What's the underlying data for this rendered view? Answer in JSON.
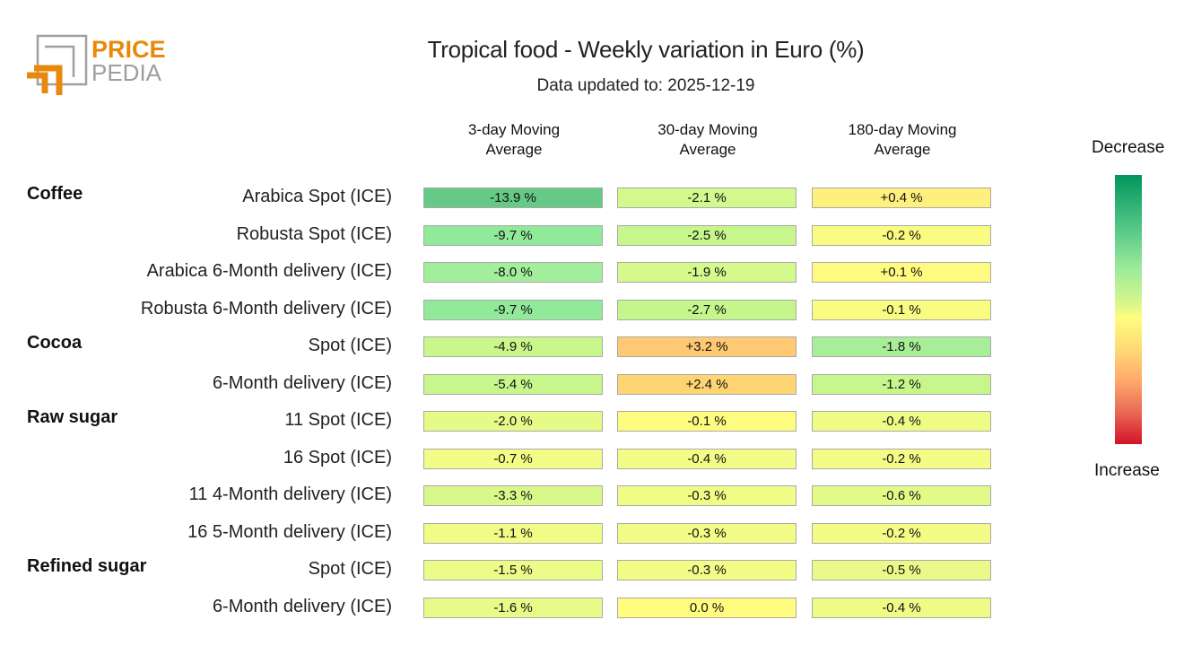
{
  "brand": {
    "name_top": "PRICE",
    "name_bottom": "PEDIA",
    "orange": "#e8890c",
    "gray": "#9e9e9e"
  },
  "chart_data": {
    "type": "heatmap",
    "title": "Tropical food - Weekly variation in Euro (%)",
    "subtitle": "Data updated to: 2025-12-19",
    "columns": [
      "3-day Moving\nAverage",
      "30-day Moving\nAverage",
      "180-day Moving\nAverage"
    ],
    "column_lines": [
      [
        "3-day Moving",
        "Average"
      ],
      [
        "30-day Moving",
        "Average"
      ],
      [
        "180-day Moving",
        "Average"
      ]
    ],
    "groups": [
      {
        "name": "Coffee",
        "first_row": 0
      },
      {
        "name": "Cocoa",
        "first_row": 4
      },
      {
        "name": "Raw sugar",
        "first_row": 6
      },
      {
        "name": "Refined sugar",
        "first_row": 10
      }
    ],
    "rows": [
      {
        "label": "Arabica Spot (ICE)",
        "values": [
          -13.9,
          -2.1,
          0.4
        ],
        "text": [
          "-13.9 %",
          "-2.1 %",
          "+0.4 %"
        ]
      },
      {
        "label": "Robusta Spot (ICE)",
        "values": [
          -9.7,
          -2.5,
          -0.2
        ],
        "text": [
          "-9.7 %",
          "-2.5 %",
          "-0.2 %"
        ]
      },
      {
        "label": "Arabica 6-Month delivery (ICE)",
        "values": [
          -8.0,
          -1.9,
          0.1
        ],
        "text": [
          "-8.0 %",
          "-1.9 %",
          "+0.1 %"
        ]
      },
      {
        "label": "Robusta 6-Month delivery (ICE)",
        "values": [
          -9.7,
          -2.7,
          -0.1
        ],
        "text": [
          "-9.7 %",
          "-2.7 %",
          "-0.1 %"
        ]
      },
      {
        "label": "Spot (ICE)",
        "values": [
          -4.9,
          3.2,
          -1.8
        ],
        "text": [
          "-4.9 %",
          "+3.2 %",
          "-1.8 %"
        ]
      },
      {
        "label": "6-Month delivery (ICE)",
        "values": [
          -5.4,
          2.4,
          -1.2
        ],
        "text": [
          "-5.4 %",
          "+2.4 %",
          "-1.2 %"
        ]
      },
      {
        "label": "11 Spot (ICE)",
        "values": [
          -2.0,
          -0.1,
          -0.4
        ],
        "text": [
          "-2.0 %",
          "-0.1 %",
          "-0.4 %"
        ]
      },
      {
        "label": "16 Spot (ICE)",
        "values": [
          -0.7,
          -0.4,
          -0.2
        ],
        "text": [
          "-0.7 %",
          "-0.4 %",
          "-0.2 %"
        ]
      },
      {
        "label": "11 4-Month delivery (ICE)",
        "values": [
          -3.3,
          -0.3,
          -0.6
        ],
        "text": [
          "-3.3 %",
          "-0.3 %",
          "-0.6 %"
        ]
      },
      {
        "label": "16 5-Month delivery (ICE)",
        "values": [
          -1.1,
          -0.3,
          -0.2
        ],
        "text": [
          "-1.1 %",
          "-0.3 %",
          "-0.2 %"
        ]
      },
      {
        "label": "Spot (ICE)",
        "values": [
          -1.5,
          -0.3,
          -0.5
        ],
        "text": [
          "-1.5 %",
          "-0.3 %",
          "-0.5 %"
        ]
      },
      {
        "label": "6-Month delivery (ICE)",
        "values": [
          -1.6,
          0.0,
          -0.4
        ],
        "text": [
          "-1.6 %",
          "0.0 %",
          "-0.4 %"
        ]
      }
    ],
    "cell_colors": [
      [
        "#66c986",
        "#d2f88e",
        "#fff07e"
      ],
      [
        "#90ea9a",
        "#c6f68c",
        "#f9fc80"
      ],
      [
        "#a2ee9a",
        "#d4f98c",
        "#fffb80"
      ],
      [
        "#90ea9a",
        "#c4f68c",
        "#f9fc80"
      ],
      [
        "#c9f78c",
        "#ffc873",
        "#a8ee98"
      ],
      [
        "#c6f68c",
        "#ffd574",
        "#c6f68c"
      ],
      [
        "#e6fa88",
        "#fdfc80",
        "#eefc86"
      ],
      [
        "#f3fc86",
        "#f3fc86",
        "#f5fc86"
      ],
      [
        "#d8f98a",
        "#f1fc86",
        "#e4fa88"
      ],
      [
        "#f1fc86",
        "#f3fc86",
        "#f5fc86"
      ],
      [
        "#ecfc88",
        "#f3fc86",
        "#eafa88"
      ],
      [
        "#eafa88",
        "#fffc80",
        "#eefc86"
      ]
    ],
    "legend": {
      "top": "Decrease",
      "bottom": "Increase",
      "placement": "right"
    }
  }
}
